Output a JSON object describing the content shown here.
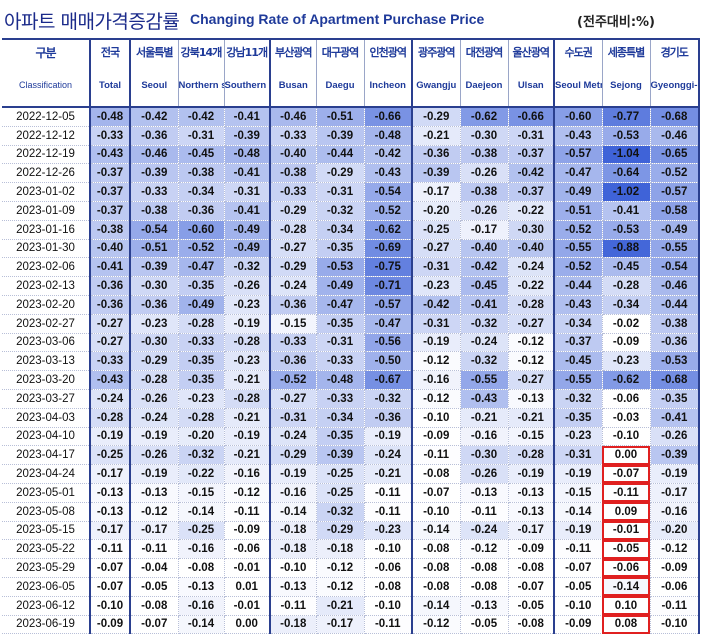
{
  "header": {
    "title_ko": "아파트 매매가격증감률",
    "title_en": "Changing Rate of Apartment Purchase Price",
    "unit": "(전주대비:%)"
  },
  "table": {
    "corner_ko": "구분",
    "corner_en": "Classification",
    "columns": [
      {
        "ko": "전국",
        "en": "Total"
      },
      {
        "ko": "서울특별",
        "en": "Seoul"
      },
      {
        "ko": "강북14개",
        "en": "Northern seoul"
      },
      {
        "ko": "강남11개",
        "en": "Southern Seoul"
      },
      {
        "ko": "부산광역",
        "en": "Busan"
      },
      {
        "ko": "대구광역",
        "en": "Daegu"
      },
      {
        "ko": "인천광역",
        "en": "Incheon"
      },
      {
        "ko": "광주광역",
        "en": "Gwangju"
      },
      {
        "ko": "대전광역",
        "en": "Daejeon"
      },
      {
        "ko": "울산광역",
        "en": "Ulsan"
      },
      {
        "ko": "수도권",
        "en": "Seoul Metropolitan Area"
      },
      {
        "ko": "세종특별",
        "en": "Sejong"
      },
      {
        "ko": "경기도",
        "en": "Gyeonggi-do"
      }
    ],
    "rows": [
      {
        "date": "2022-12-05",
        "values": [
          "-0.48",
          "-0.42",
          "-0.42",
          "-0.41",
          "-0.46",
          "-0.51",
          "-0.66",
          "-0.29",
          "-0.62",
          "-0.66",
          "-0.60",
          "-0.77",
          "-0.68"
        ]
      },
      {
        "date": "2022-12-12",
        "values": [
          "-0.33",
          "-0.36",
          "-0.31",
          "-0.39",
          "-0.33",
          "-0.39",
          "-0.48",
          "-0.21",
          "-0.30",
          "-0.31",
          "-0.43",
          "-0.53",
          "-0.46"
        ]
      },
      {
        "date": "2022-12-19",
        "values": [
          "-0.43",
          "-0.46",
          "-0.45",
          "-0.48",
          "-0.40",
          "-0.44",
          "-0.42",
          "-0.36",
          "-0.38",
          "-0.37",
          "-0.57",
          "-1.04",
          "-0.65"
        ]
      },
      {
        "date": "2022-12-26",
        "values": [
          "-0.37",
          "-0.39",
          "-0.38",
          "-0.41",
          "-0.38",
          "-0.29",
          "-0.43",
          "-0.39",
          "-0.26",
          "-0.42",
          "-0.47",
          "-0.64",
          "-0.52"
        ]
      },
      {
        "date": "2023-01-02",
        "values": [
          "-0.37",
          "-0.33",
          "-0.34",
          "-0.31",
          "-0.33",
          "-0.31",
          "-0.54",
          "-0.17",
          "-0.38",
          "-0.37",
          "-0.49",
          "-1.02",
          "-0.57"
        ]
      },
      {
        "date": "2023-01-09",
        "values": [
          "-0.37",
          "-0.38",
          "-0.36",
          "-0.41",
          "-0.29",
          "-0.32",
          "-0.52",
          "-0.20",
          "-0.26",
          "-0.22",
          "-0.51",
          "-0.41",
          "-0.58"
        ]
      },
      {
        "date": "2023-01-16",
        "values": [
          "-0.38",
          "-0.54",
          "-0.60",
          "-0.49",
          "-0.28",
          "-0.34",
          "-0.62",
          "-0.25",
          "-0.17",
          "-0.30",
          "-0.52",
          "-0.53",
          "-0.49"
        ]
      },
      {
        "date": "2023-01-30",
        "values": [
          "-0.40",
          "-0.51",
          "-0.52",
          "-0.49",
          "-0.27",
          "-0.35",
          "-0.69",
          "-0.27",
          "-0.40",
          "-0.40",
          "-0.55",
          "-0.88",
          "-0.55"
        ]
      },
      {
        "date": "2023-02-06",
        "values": [
          "-0.41",
          "-0.39",
          "-0.47",
          "-0.32",
          "-0.29",
          "-0.53",
          "-0.75",
          "-0.31",
          "-0.42",
          "-0.24",
          "-0.52",
          "-0.45",
          "-0.54"
        ]
      },
      {
        "date": "2023-02-13",
        "values": [
          "-0.36",
          "-0.30",
          "-0.35",
          "-0.26",
          "-0.24",
          "-0.49",
          "-0.71",
          "-0.23",
          "-0.45",
          "-0.22",
          "-0.44",
          "-0.28",
          "-0.46"
        ]
      },
      {
        "date": "2023-02-20",
        "values": [
          "-0.36",
          "-0.36",
          "-0.49",
          "-0.23",
          "-0.36",
          "-0.47",
          "-0.57",
          "-0.42",
          "-0.41",
          "-0.28",
          "-0.43",
          "-0.34",
          "-0.44"
        ]
      },
      {
        "date": "2023-02-27",
        "values": [
          "-0.27",
          "-0.23",
          "-0.28",
          "-0.19",
          "-0.15",
          "-0.35",
          "-0.47",
          "-0.31",
          "-0.32",
          "-0.27",
          "-0.34",
          "-0.02",
          "-0.38"
        ]
      },
      {
        "date": "2023-03-06",
        "values": [
          "-0.27",
          "-0.30",
          "-0.33",
          "-0.28",
          "-0.33",
          "-0.31",
          "-0.56",
          "-0.19",
          "-0.24",
          "-0.12",
          "-0.37",
          "-0.09",
          "-0.36"
        ]
      },
      {
        "date": "2023-03-13",
        "values": [
          "-0.33",
          "-0.29",
          "-0.35",
          "-0.23",
          "-0.36",
          "-0.33",
          "-0.50",
          "-0.12",
          "-0.32",
          "-0.12",
          "-0.45",
          "-0.23",
          "-0.53"
        ]
      },
      {
        "date": "2023-03-20",
        "values": [
          "-0.43",
          "-0.28",
          "-0.35",
          "-0.21",
          "-0.52",
          "-0.48",
          "-0.67",
          "-0.16",
          "-0.55",
          "-0.27",
          "-0.55",
          "-0.62",
          "-0.68"
        ]
      },
      {
        "date": "2023-03-27",
        "values": [
          "-0.24",
          "-0.26",
          "-0.23",
          "-0.28",
          "-0.27",
          "-0.33",
          "-0.32",
          "-0.12",
          "-0.43",
          "-0.13",
          "-0.32",
          "-0.06",
          "-0.35"
        ]
      },
      {
        "date": "2023-04-03",
        "values": [
          "-0.28",
          "-0.24",
          "-0.28",
          "-0.21",
          "-0.31",
          "-0.34",
          "-0.36",
          "-0.10",
          "-0.21",
          "-0.21",
          "-0.35",
          "-0.03",
          "-0.41"
        ]
      },
      {
        "date": "2023-04-10",
        "values": [
          "-0.19",
          "-0.19",
          "-0.20",
          "-0.19",
          "-0.24",
          "-0.35",
          "-0.19",
          "-0.09",
          "-0.16",
          "-0.15",
          "-0.23",
          "-0.10",
          "-0.26"
        ]
      },
      {
        "date": "2023-04-17",
        "values": [
          "-0.25",
          "-0.26",
          "-0.32",
          "-0.21",
          "-0.29",
          "-0.39",
          "-0.24",
          "-0.11",
          "-0.30",
          "-0.28",
          "-0.31",
          "0.00",
          "-0.39"
        ]
      },
      {
        "date": "2023-04-24",
        "values": [
          "-0.17",
          "-0.19",
          "-0.22",
          "-0.16",
          "-0.19",
          "-0.25",
          "-0.21",
          "-0.08",
          "-0.26",
          "-0.19",
          "-0.19",
          "-0.07",
          "-0.19"
        ]
      },
      {
        "date": "2023-05-01",
        "values": [
          "-0.13",
          "-0.13",
          "-0.15",
          "-0.12",
          "-0.16",
          "-0.25",
          "-0.11",
          "-0.07",
          "-0.13",
          "-0.13",
          "-0.15",
          "-0.11",
          "-0.17"
        ]
      },
      {
        "date": "2023-05-08",
        "values": [
          "-0.13",
          "-0.12",
          "-0.14",
          "-0.11",
          "-0.14",
          "-0.32",
          "-0.11",
          "-0.10",
          "-0.11",
          "-0.13",
          "-0.14",
          "0.09",
          "-0.16"
        ]
      },
      {
        "date": "2023-05-15",
        "values": [
          "-0.17",
          "-0.17",
          "-0.25",
          "-0.09",
          "-0.18",
          "-0.29",
          "-0.23",
          "-0.14",
          "-0.24",
          "-0.17",
          "-0.19",
          "-0.01",
          "-0.20"
        ]
      },
      {
        "date": "2023-05-22",
        "values": [
          "-0.11",
          "-0.11",
          "-0.16",
          "-0.06",
          "-0.18",
          "-0.18",
          "-0.10",
          "-0.08",
          "-0.12",
          "-0.09",
          "-0.11",
          "-0.05",
          "-0.12"
        ]
      },
      {
        "date": "2023-05-29",
        "values": [
          "-0.07",
          "-0.04",
          "-0.08",
          "-0.01",
          "-0.10",
          "-0.12",
          "-0.06",
          "-0.08",
          "-0.08",
          "-0.08",
          "-0.07",
          "-0.06",
          "-0.09"
        ]
      },
      {
        "date": "2023-06-05",
        "values": [
          "-0.07",
          "-0.05",
          "-0.13",
          "0.01",
          "-0.13",
          "-0.12",
          "-0.08",
          "-0.08",
          "-0.08",
          "-0.07",
          "-0.05",
          "-0.14",
          "-0.06"
        ]
      },
      {
        "date": "2023-06-12",
        "values": [
          "-0.10",
          "-0.08",
          "-0.16",
          "-0.01",
          "-0.11",
          "-0.21",
          "-0.10",
          "-0.14",
          "-0.13",
          "-0.05",
          "-0.10",
          "0.10",
          "-0.11"
        ]
      },
      {
        "date": "2023-06-19",
        "values": [
          "-0.09",
          "-0.07",
          "-0.14",
          "0.00",
          "-0.18",
          "-0.17",
          "-0.11",
          "-0.12",
          "-0.05",
          "-0.08",
          "-0.09",
          "0.08",
          "-0.10"
        ]
      }
    ],
    "highlight": {
      "column": 11,
      "from_row": 18,
      "to_row": 27,
      "color": "#e02020"
    }
  },
  "colors": {
    "accent": "#1f3a9a",
    "scale_light": "#ffffff",
    "scale_dark": "#3f63d8"
  }
}
